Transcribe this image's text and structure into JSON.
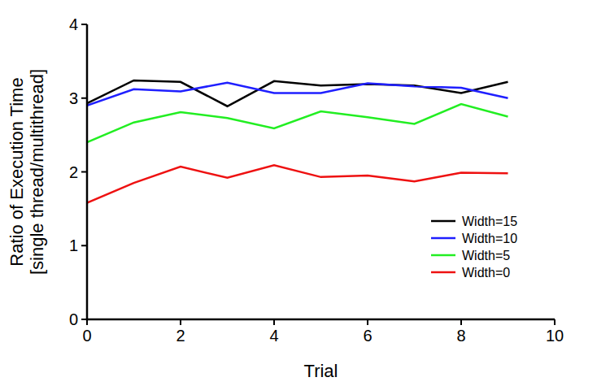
{
  "chart_data": {
    "type": "line",
    "x_label": "Trial",
    "y_label": "Ratio of Execution Time\n[single thread/multithread]",
    "x": [
      0,
      1,
      2,
      3,
      4,
      5,
      6,
      7,
      8,
      9
    ],
    "xlim": [
      0,
      10
    ],
    "xticks": [
      0,
      2,
      4,
      6,
      8,
      10
    ],
    "ylim": [
      0,
      4
    ],
    "yticks": [
      0,
      1,
      2,
      3,
      4
    ],
    "grid": false,
    "legend": "lower right",
    "series": [
      {
        "name": "Width=15",
        "color": "#000000",
        "values": [
          2.93,
          3.24,
          3.22,
          2.89,
          3.23,
          3.17,
          3.19,
          3.17,
          3.07,
          3.22
        ]
      },
      {
        "name": "Width=10",
        "color": "#1f1fff",
        "values": [
          2.9,
          3.12,
          3.09,
          3.21,
          3.07,
          3.07,
          3.2,
          3.16,
          3.14,
          3.0
        ]
      },
      {
        "name": "Width=5",
        "color": "#22ee22",
        "values": [
          2.4,
          2.67,
          2.81,
          2.73,
          2.59,
          2.82,
          2.74,
          2.65,
          2.92,
          2.75
        ]
      },
      {
        "name": "Width=0",
        "color": "#ee1111",
        "values": [
          1.58,
          1.85,
          2.07,
          1.92,
          2.09,
          1.93,
          1.95,
          1.87,
          1.99,
          1.98
        ]
      }
    ]
  }
}
